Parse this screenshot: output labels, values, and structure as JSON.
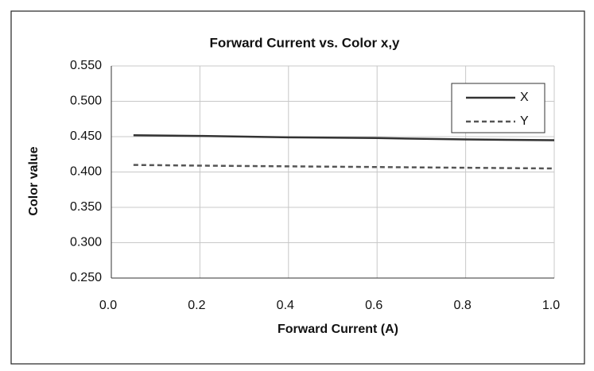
{
  "chart_data": {
    "type": "line",
    "title": "Forward Current vs. Color x,y",
    "x_label": "Forward Current (A)",
    "y_label": "Color value",
    "x": [
      0.05,
      0.2,
      0.4,
      0.6,
      0.8,
      1.0
    ],
    "series": [
      {
        "name": "X",
        "color": "#333333",
        "dash": "solid",
        "values": [
          0.452,
          0.451,
          0.449,
          0.448,
          0.446,
          0.445
        ]
      },
      {
        "name": "Y",
        "color": "#555555",
        "dash": "dashed",
        "values": [
          0.41,
          0.409,
          0.408,
          0.407,
          0.406,
          0.405
        ]
      }
    ],
    "xlim": [
      0,
      1
    ],
    "xticks": [
      {
        "value": 0,
        "label": "0.0"
      },
      {
        "value": 0.2,
        "label": "0.2"
      },
      {
        "value": 0.4,
        "label": "0.4"
      },
      {
        "value": 0.6,
        "label": "0.6"
      },
      {
        "value": 0.8,
        "label": "0.8"
      },
      {
        "value": 1,
        "label": "1.0"
      }
    ],
    "ylim": [
      0.25,
      0.55
    ],
    "yticks": [
      {
        "value": 0.25,
        "label": "0.250"
      },
      {
        "value": 0.3,
        "label": "0.300"
      },
      {
        "value": 0.35,
        "label": "0.350"
      },
      {
        "value": 0.4,
        "label": "0.400"
      },
      {
        "value": 0.45,
        "label": "0.450"
      },
      {
        "value": 0.5,
        "label": "0.500"
      },
      {
        "value": 0.55,
        "label": "0.550"
      }
    ],
    "grid": true,
    "legend": "top-right"
  }
}
